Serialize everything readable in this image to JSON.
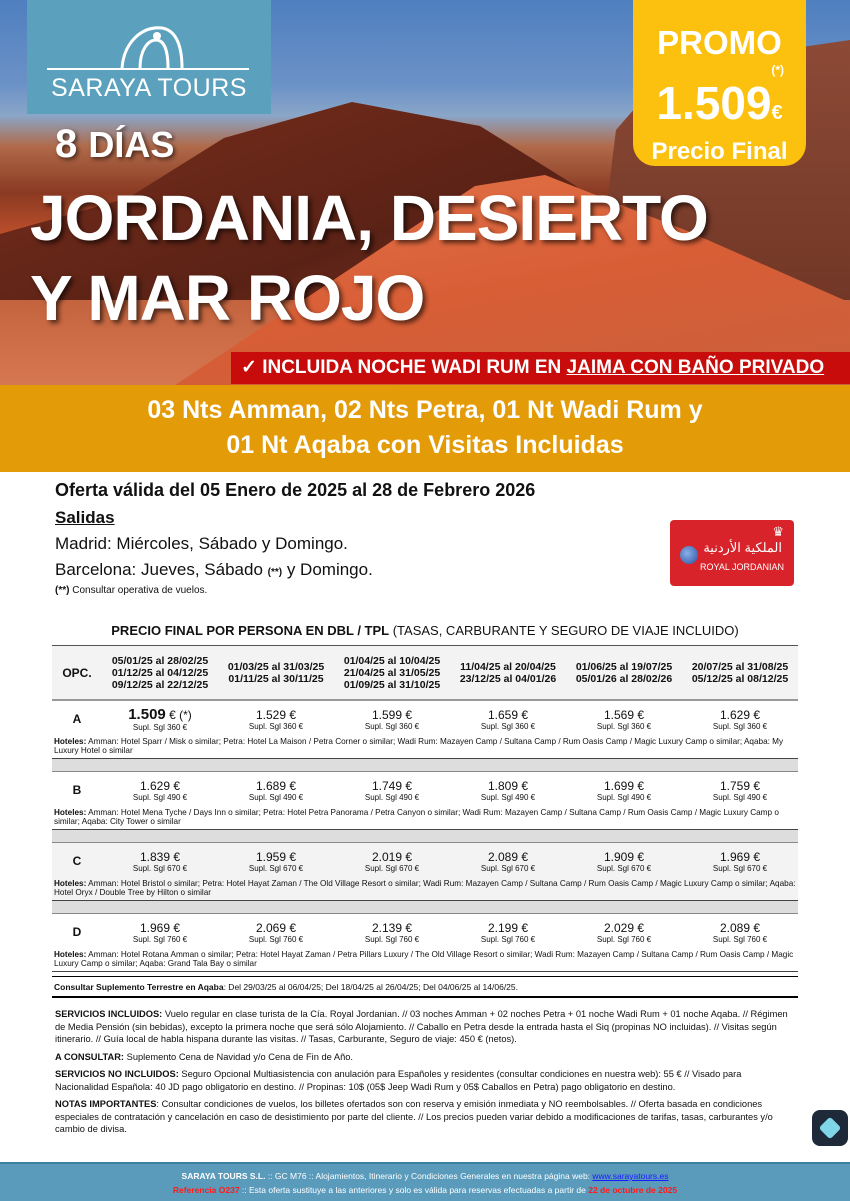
{
  "brand": {
    "name": "SARAYA TOURS",
    "color": "#5ba0bc"
  },
  "hero": {
    "days_num": "8",
    "days_word": "DÍAS",
    "title_line1": "JORDANIA, DESIERTO",
    "title_line2": "Y MAR ROJO"
  },
  "promo": {
    "label": "PROMO",
    "asterisk": "(*)",
    "price": "1.509",
    "currency": "€",
    "subtitle": "Precio Final",
    "color": "#fcc10f"
  },
  "banner": {
    "check": "✓",
    "text": "INCLUIDA NOCHE WADI RUM EN ",
    "underlined": "JAIMA CON BAÑO PRIVADO",
    "color": "#c80b0b"
  },
  "band": {
    "line1": "03 Nts Amman,  02 Nts Petra, 01 Nt Wadi Rum y",
    "line2": "01 Nt Aqaba con Visitas Incluidas",
    "color": "#e39b08"
  },
  "offer": "Oferta válida del 05 Enero de 2025 al 28 de Febrero 2026",
  "salidas": {
    "title": "Salidas",
    "madrid": "Madrid: Miércoles, Sábado y Domingo.",
    "barcelona_pre": "Barcelona: Jueves, Sábado ",
    "barcelona_mark": "(**)",
    "barcelona_post": " y Domingo.",
    "note_mark": "(**)",
    "note": " Consultar operativa de vuelos."
  },
  "airline": {
    "name": "ROYAL JORDANIAN",
    "arabic": "الملكية الأردنية"
  },
  "table": {
    "title_bold": "PRECIO FINAL POR PERSONA EN DBL / TPL",
    "title_rest": " (TASAS, CARBURANTE Y SEGURO DE VIAJE INCLUIDO)",
    "opc": "OPC.",
    "periods": [
      [
        "05/01/25 al 28/02/25",
        "01/12/25 al 04/12/25",
        "09/12/25 al 22/12/25"
      ],
      [
        "01/03/25 al 31/03/25",
        "01/11/25 al 30/11/25"
      ],
      [
        "01/04/25 al 10/04/25",
        "21/04/25 al 31/05/25",
        "01/09/25 al 31/10/25"
      ],
      [
        "11/04/25 al 20/04/25",
        "23/12/25 al 04/01/26"
      ],
      [
        "01/06/25 al 19/07/25",
        "05/01/26 al 28/02/26"
      ],
      [
        "20/07/25 al 31/08/25",
        "05/12/25 al 08/12/25"
      ]
    ],
    "hotels_label": "Hoteles:",
    "options": [
      {
        "code": "A",
        "prices": [
          "1.509",
          "1.529 €",
          "1.599 €",
          "1.659 €",
          "1.569 €",
          "1.629 €"
        ],
        "first_suffix": " € (*)",
        "supl": "Supl. Sgl 360 €",
        "hotels": " Amman: Hotel Sparr / Misk o similar; Petra: Hotel La Maison / Petra Corner o similar; Wadi Rum: Mazayen Camp / Sultana Camp / Rum Oasis Camp / Magic Luxury Camp o similar; Aqaba: My Luxury Hotel o similar"
      },
      {
        "code": "B",
        "prices": [
          "1.629 €",
          "1.689 €",
          "1.749 €",
          "1.809 €",
          "1.699 €",
          "1.759 €"
        ],
        "supl": "Supl. Sgl 490 €",
        "hotels": " Amman: Hotel Mena Tyche / Days Inn o similar; Petra: Hotel Petra Panorama / Petra Canyon o similar; Wadi Rum: Mazayen Camp / Sultana Camp / Rum Oasis Camp / Magic Luxury Camp o similar; Aqaba: City Tower o similar"
      },
      {
        "code": "C",
        "prices": [
          "1.839 €",
          "1.959 €",
          "2.019 €",
          "2.089 €",
          "1.909 €",
          "1.969 €"
        ],
        "supl": "Supl. Sgl 670 €",
        "hotels": "  Amman: Hotel Bristol o similar; Petra: Hotel Hayat Zaman / The Old Village Resort o similar; Wadi Rum: Mazayen Camp / Sultana Camp / Rum Oasis Camp / Magic Luxury Camp o similar; Aqaba: Hotel Oryx / Double Tree by Hilton o similar"
      },
      {
        "code": "D",
        "prices": [
          "1.969 €",
          "2.069 €",
          "2.139 €",
          "2.199 €",
          "2.029 €",
          "2.089 €"
        ],
        "supl": "Supl. Sgl 760 €",
        "hotels": " Amman: Hotel Rotana Amman o similar; Petra: Hotel Hayat Zaman / Petra Pillars Luxury / The Old Village Resort o similar; Wadi Rum: Mazayen Camp / Sultana Camp / Rum Oasis Camp / Magic Luxury Camp o similar; Aqaba: Grand Tala Bay o similar"
      }
    ],
    "supl_label": "Consultar Suplemento Terrestre en Aqaba",
    "supl_text": ": Del 29/03/25 al 06/04/25; Del 18/04/25 al 26/04/25; Del 04/06/25 al 14/06/25."
  },
  "info": [
    {
      "label": "SERVICIOS INCLUIDOS:",
      "text": " Vuelo regular en clase turista de la Cía. Royal Jordanian. // 03 noches Amman + 02 noches Petra + 01 noche Wadi Rum + 01 noche Aqaba. // Régimen de Media Pensión (sin bebidas), excepto la primera noche que será sólo Alojamiento. // Caballo en Petra desde la entrada hasta el Siq (propinas NO incluidas). // Visitas según itinerario. // Guía local de habla hispana durante las visitas. // Tasas, Carburante, Seguro de viaje: 450 € (netos)."
    },
    {
      "label": "A CONSULTAR:",
      "text": " Suplemento Cena de Navidad y/o Cena de Fin de Año."
    },
    {
      "label": "SERVICIOS NO INCLUIDOS:",
      "text": " Seguro Opcional Multiasistencia con anulación para Españoles y residentes (consultar condiciones en nuestra web): 55 € // Visado para Nacionalidad Española: 40 JD pago obligatorio en destino. // Propinas: 10$ (05$ Jeep Wadi Rum y 05$ Caballos en Petra) pago obligatorio en destino."
    },
    {
      "label": "NOTAS IMPORTANTES",
      "text": ": Consultar condiciones de vuelos, los billetes ofertados son con reserva y emisión inmediata y NO reembolsables. // Oferta basada en condiciones especiales de contratación y cancelación en caso de desistimiento por parte del cliente. // Los precios pueden variar debido a modificaciones de tarifas, tasas, carburantes y/o cambio de divisa."
    }
  ],
  "footer": {
    "company": "SARAYA TOURS S.L.",
    "line1": " :: GC M76 ::  Alojamientos, Itinerario y Condiciones Generales en nuestra página web:  ",
    "link": "www.sarayatours.es",
    "ref": "Referencia O237",
    "line2": " :: Esta oferta sustituye a las anteriores y solo es válida para reservas efectuadas a partir de ",
    "date": "22 de octubre de 2025",
    "color": "#5a9bbc"
  }
}
